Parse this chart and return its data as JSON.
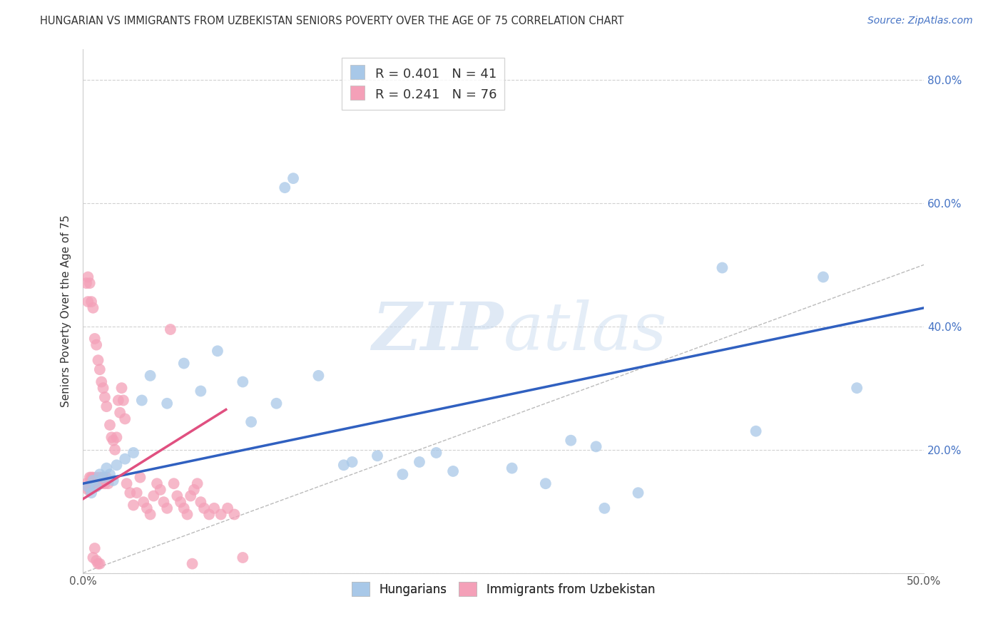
{
  "title": "HUNGARIAN VS IMMIGRANTS FROM UZBEKISTAN SENIORS POVERTY OVER THE AGE OF 75 CORRELATION CHART",
  "source": "Source: ZipAtlas.com",
  "ylabel": "Seniors Poverty Over the Age of 75",
  "xlim": [
    0,
    0.5
  ],
  "ylim": [
    0,
    0.85
  ],
  "xtick_positions": [
    0.0,
    0.5
  ],
  "xticklabels": [
    "0.0%",
    "50.0%"
  ],
  "ytick_positions": [
    0.0,
    0.2,
    0.4,
    0.6,
    0.8
  ],
  "yticklabels_right": [
    "",
    "20.0%",
    "40.0%",
    "60.0%",
    "80.0%"
  ],
  "blue_color": "#a8c8e8",
  "pink_color": "#f4a0b8",
  "blue_line_color": "#3060c0",
  "pink_line_color": "#e05080",
  "R_blue": 0.401,
  "N_blue": 41,
  "R_pink": 0.241,
  "N_pink": 76,
  "watermark_zip": "ZIP",
  "watermark_atlas": "atlas",
  "legend_labels": [
    "Hungarians",
    "Immigrants from Uzbekistan"
  ],
  "blue_line_x0": 0.0,
  "blue_line_y0": 0.145,
  "blue_line_x1": 0.5,
  "blue_line_y1": 0.43,
  "pink_line_x0": 0.0,
  "pink_line_y0": 0.12,
  "pink_line_x1": 0.085,
  "pink_line_y1": 0.265,
  "blue_scatter_x": [
    0.003,
    0.005,
    0.006,
    0.008,
    0.01,
    0.012,
    0.014,
    0.016,
    0.018,
    0.02,
    0.025,
    0.03,
    0.035,
    0.04,
    0.05,
    0.06,
    0.07,
    0.08,
    0.095,
    0.1,
    0.115,
    0.12,
    0.125,
    0.14,
    0.155,
    0.16,
    0.175,
    0.19,
    0.2,
    0.21,
    0.22,
    0.255,
    0.275,
    0.29,
    0.305,
    0.31,
    0.33,
    0.38,
    0.4,
    0.44,
    0.46
  ],
  "blue_scatter_y": [
    0.14,
    0.13,
    0.15,
    0.14,
    0.16,
    0.155,
    0.17,
    0.16,
    0.15,
    0.175,
    0.185,
    0.195,
    0.28,
    0.32,
    0.275,
    0.34,
    0.295,
    0.36,
    0.31,
    0.245,
    0.275,
    0.625,
    0.64,
    0.32,
    0.175,
    0.18,
    0.19,
    0.16,
    0.18,
    0.195,
    0.165,
    0.17,
    0.145,
    0.215,
    0.205,
    0.105,
    0.13,
    0.495,
    0.23,
    0.48,
    0.3
  ],
  "pink_scatter_x": [
    0.002,
    0.003,
    0.003,
    0.004,
    0.004,
    0.005,
    0.005,
    0.006,
    0.006,
    0.007,
    0.007,
    0.008,
    0.008,
    0.009,
    0.009,
    0.01,
    0.01,
    0.011,
    0.011,
    0.012,
    0.012,
    0.013,
    0.013,
    0.014,
    0.014,
    0.015,
    0.016,
    0.017,
    0.018,
    0.019,
    0.02,
    0.021,
    0.022,
    0.023,
    0.024,
    0.025,
    0.026,
    0.028,
    0.03,
    0.032,
    0.034,
    0.036,
    0.038,
    0.04,
    0.042,
    0.044,
    0.046,
    0.048,
    0.05,
    0.052,
    0.054,
    0.056,
    0.058,
    0.06,
    0.062,
    0.064,
    0.066,
    0.068,
    0.07,
    0.072,
    0.075,
    0.078,
    0.082,
    0.086,
    0.09,
    0.095,
    0.002,
    0.003,
    0.004,
    0.005,
    0.006,
    0.007,
    0.008,
    0.009,
    0.01,
    0.065
  ],
  "pink_scatter_y": [
    0.145,
    0.135,
    0.44,
    0.155,
    0.47,
    0.145,
    0.44,
    0.155,
    0.43,
    0.145,
    0.38,
    0.155,
    0.37,
    0.145,
    0.345,
    0.155,
    0.33,
    0.145,
    0.31,
    0.155,
    0.3,
    0.145,
    0.285,
    0.155,
    0.27,
    0.145,
    0.24,
    0.22,
    0.215,
    0.2,
    0.22,
    0.28,
    0.26,
    0.3,
    0.28,
    0.25,
    0.145,
    0.13,
    0.11,
    0.13,
    0.155,
    0.115,
    0.105,
    0.095,
    0.125,
    0.145,
    0.135,
    0.115,
    0.105,
    0.395,
    0.145,
    0.125,
    0.115,
    0.105,
    0.095,
    0.125,
    0.135,
    0.145,
    0.115,
    0.105,
    0.095,
    0.105,
    0.095,
    0.105,
    0.095,
    0.025,
    0.47,
    0.48,
    0.135,
    0.155,
    0.025,
    0.04,
    0.02,
    0.015,
    0.015,
    0.015
  ]
}
